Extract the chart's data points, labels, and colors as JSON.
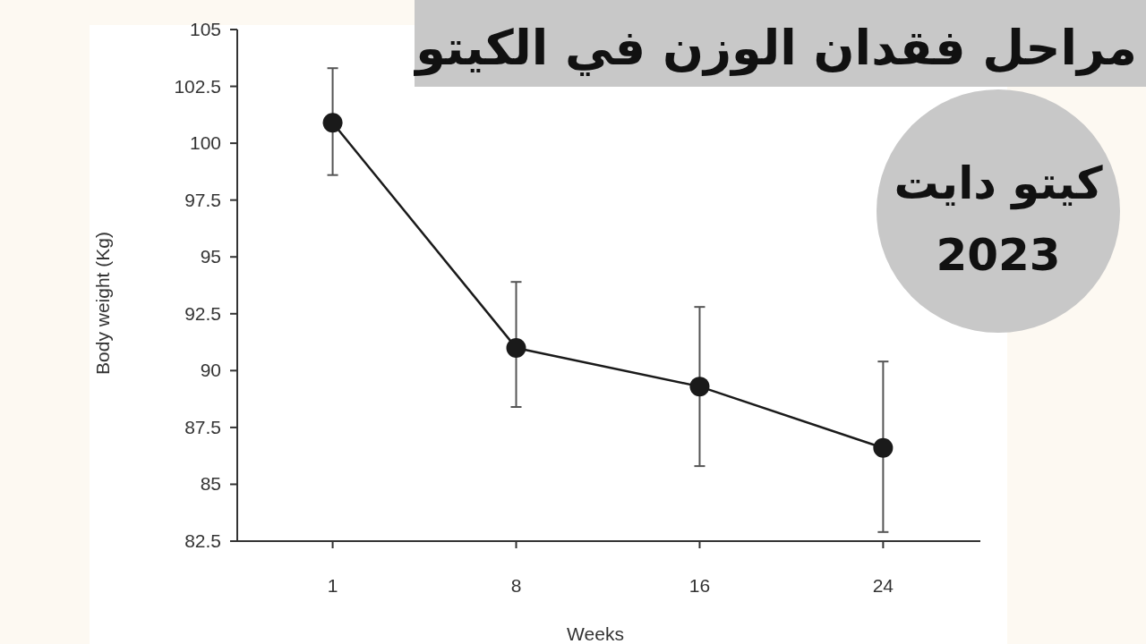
{
  "chart_data": {
    "type": "line",
    "title": "مراحل فقدان الوزن في الكيتو",
    "annotations": [
      "كيتو دايت",
      "2023"
    ],
    "xlabel": "Weeks",
    "ylabel": "Body weight (Kg)",
    "categories": [
      "1",
      "8",
      "16",
      "24"
    ],
    "values": [
      100.9,
      91.0,
      89.3,
      86.6
    ],
    "errors": [
      [
        98.6,
        103.3
      ],
      [
        88.4,
        93.9
      ],
      [
        85.8,
        92.8
      ],
      [
        82.9,
        90.4
      ]
    ],
    "color": "#1a1a1a",
    "marker": "circle",
    "line_style": "solid",
    "grid": false,
    "ylim": [
      82.5,
      105
    ],
    "yticks": [
      82.5,
      85,
      87.5,
      90,
      92.5,
      95,
      97.5,
      100,
      102.5,
      105
    ]
  }
}
